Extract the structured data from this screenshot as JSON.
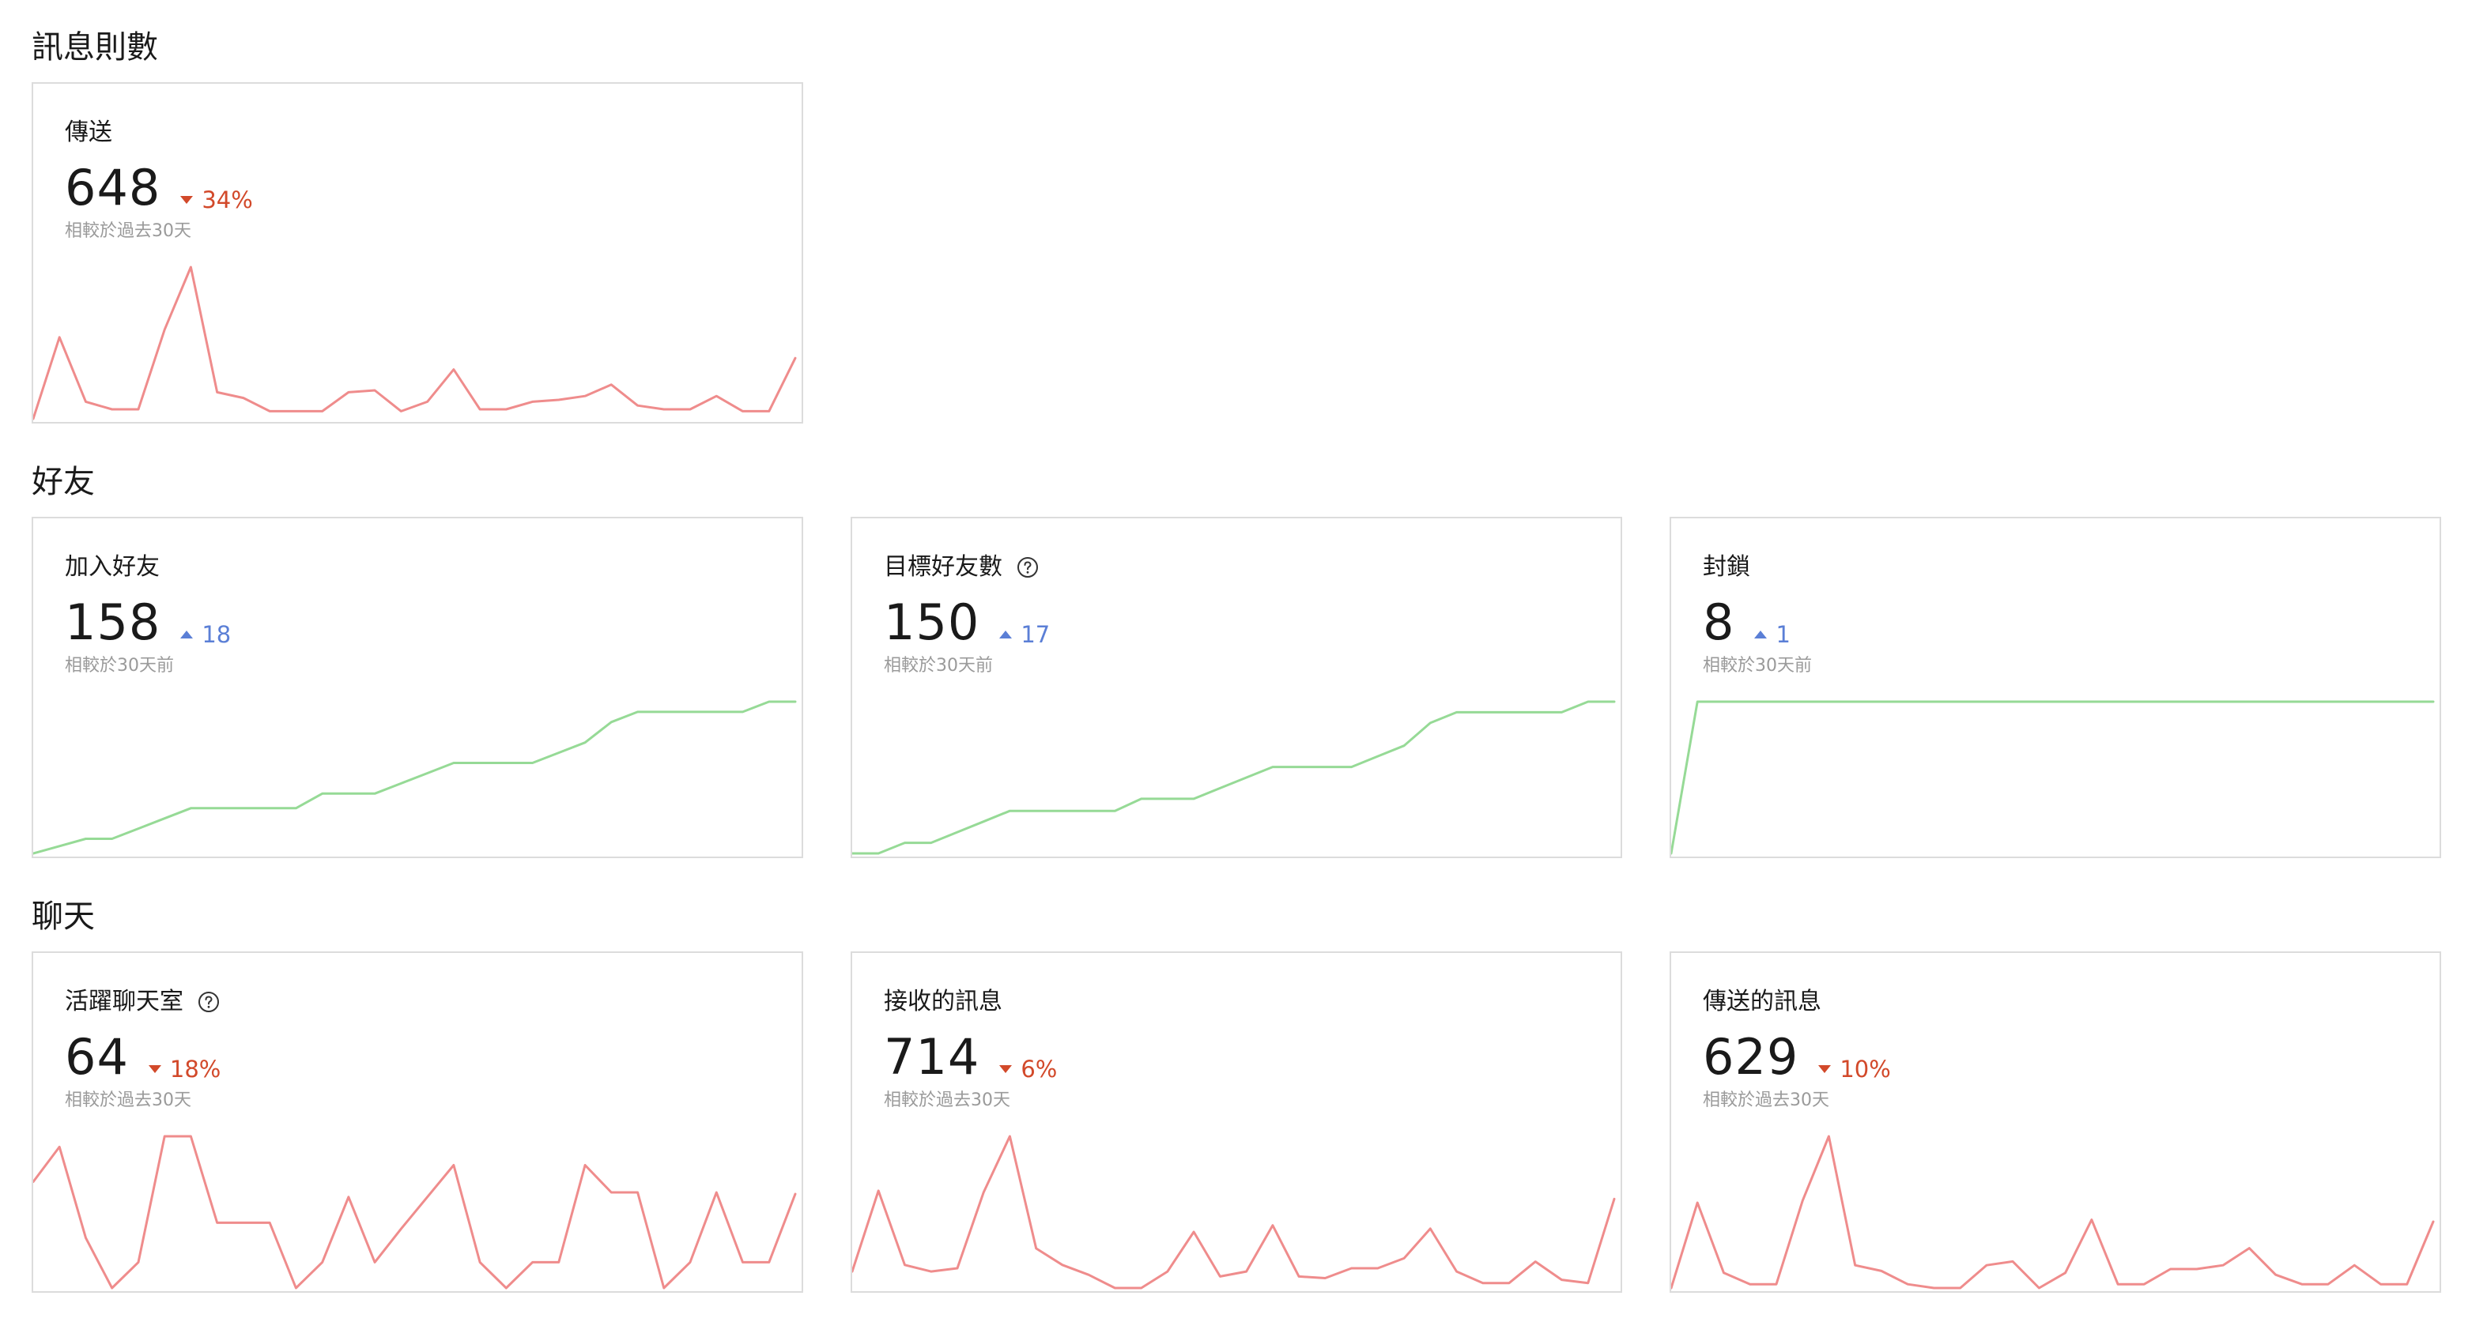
{
  "colors": {
    "down": "#d2492a",
    "up": "#5b7fd6",
    "line_negative": "#ef8c8c",
    "line_positive": "#96da96"
  },
  "sections": [
    {
      "title": "訊息則數",
      "cards": [
        {
          "title": "傳送",
          "value": "648",
          "direction": "down",
          "delta": "34%",
          "note": "相較於過去30天",
          "help": false,
          "trend": "negative",
          "series": [
            20,
            63,
            29,
            25,
            25,
            67,
            100,
            34,
            31,
            24,
            24,
            24,
            34,
            35,
            24,
            29,
            46,
            25,
            25,
            29,
            30,
            32,
            38,
            27,
            25,
            25,
            32,
            24,
            24,
            52
          ]
        }
      ]
    },
    {
      "title": "好友",
      "cards": [
        {
          "title": "加入好友",
          "value": "158",
          "direction": "up",
          "delta": "18",
          "note": "相較於30天前",
          "help": false,
          "trend": "positive",
          "series": [
            0,
            5,
            10,
            10,
            17,
            24,
            31,
            31,
            31,
            31,
            31,
            41,
            41,
            41,
            48,
            55,
            62,
            62,
            62,
            62,
            69,
            76,
            90,
            97,
            97,
            97,
            97,
            97,
            104,
            104
          ]
        },
        {
          "title": "目標好友數",
          "value": "150",
          "direction": "up",
          "delta": "17",
          "note": "相較於30天前",
          "help": true,
          "trend": "positive",
          "series": [
            0,
            0,
            7,
            7,
            14,
            21,
            28,
            28,
            28,
            28,
            28,
            36,
            36,
            36,
            43,
            50,
            57,
            57,
            57,
            57,
            64,
            71,
            86,
            93,
            93,
            93,
            93,
            93,
            100,
            100
          ]
        },
        {
          "title": "封鎖",
          "value": "8",
          "direction": "up",
          "delta": "1",
          "note": "相較於30天前",
          "help": false,
          "trend": "positive",
          "series": [
            0,
            100,
            100,
            100,
            100,
            100,
            100,
            100,
            100,
            100,
            100,
            100,
            100,
            100,
            100,
            100,
            100,
            100,
            100,
            100,
            100,
            100,
            100,
            100,
            100,
            100,
            100,
            100,
            100,
            100
          ]
        }
      ]
    },
    {
      "title": "聊天",
      "cards": [
        {
          "title": "活躍聊天室",
          "value": "64",
          "direction": "down",
          "delta": "18%",
          "note": "相較於過去30天",
          "help": true,
          "trend": "negative",
          "series": [
            70,
            93,
            33,
            0,
            17,
            100,
            100,
            43,
            43,
            43,
            0,
            17,
            60,
            17,
            39,
            60,
            81,
            17,
            0,
            17,
            17,
            81,
            63,
            63,
            0,
            17,
            63,
            17,
            17,
            62
          ]
        },
        {
          "title": "接收的訊息",
          "value": "714",
          "direction": "down",
          "delta": "6%",
          "note": "相較於過去30天",
          "help": false,
          "trend": "negative",
          "series": [
            18,
            67,
            22,
            18,
            20,
            66,
            100,
            32,
            22,
            16,
            8,
            8,
            18,
            42,
            15,
            18,
            46,
            15,
            14,
            20,
            20,
            26,
            44,
            18,
            11,
            11,
            24,
            13,
            11,
            62
          ]
        },
        {
          "title": "傳送的訊息",
          "value": "629",
          "direction": "down",
          "delta": "10%",
          "note": "相較於過去30天",
          "help": false,
          "trend": "negative",
          "series": [
            20,
            65,
            28,
            22,
            22,
            66,
            100,
            32,
            29,
            22,
            20,
            20,
            32,
            34,
            20,
            28,
            56,
            22,
            22,
            30,
            30,
            32,
            41,
            27,
            22,
            22,
            32,
            22,
            22,
            55
          ]
        }
      ]
    }
  ]
}
